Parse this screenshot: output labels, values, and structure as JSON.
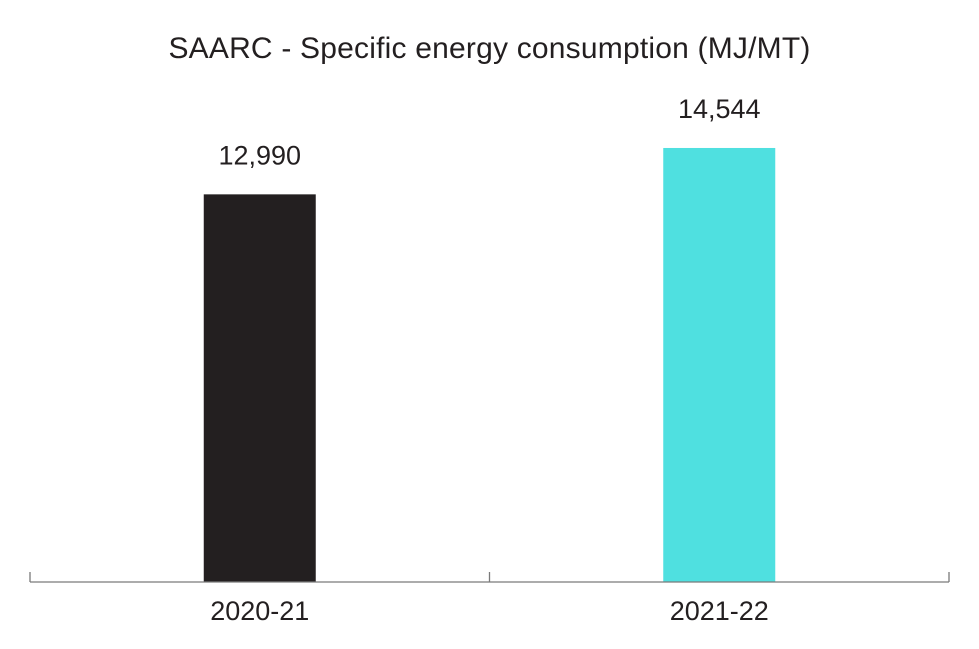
{
  "chart_data": {
    "type": "bar",
    "title": "SAARC - Specific energy consumption (MJ/MT)",
    "categories": [
      "2020-21",
      "2021-22"
    ],
    "values": [
      12990,
      14544
    ],
    "value_labels": [
      "12,990",
      "14,544"
    ],
    "colors": [
      "#231f20",
      "#4fe0e0"
    ],
    "xlabel": "",
    "ylabel": "",
    "ylim": [
      0,
      19000
    ],
    "grid": false,
    "legend": "none"
  }
}
